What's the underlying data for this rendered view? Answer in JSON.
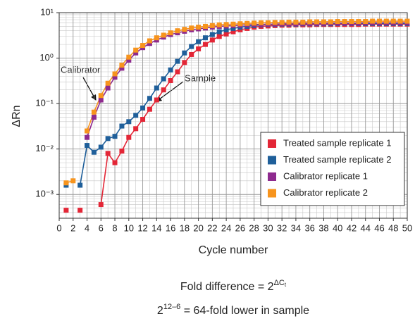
{
  "chart_data": {
    "type": "line",
    "x_label": "Cycle number",
    "y_label": "ΔRn",
    "log_y": true,
    "grid": true,
    "x": [
      1,
      2,
      3,
      4,
      5,
      6,
      7,
      8,
      9,
      10,
      11,
      12,
      13,
      14,
      15,
      16,
      17,
      18,
      19,
      20,
      21,
      22,
      23,
      24,
      25,
      26,
      27,
      28,
      29,
      30,
      31,
      32,
      33,
      34,
      35,
      36,
      37,
      38,
      39,
      40,
      41,
      42,
      43,
      44,
      45,
      46,
      47,
      48,
      49,
      50
    ],
    "xlim": [
      0,
      50
    ],
    "xticks": [
      0,
      2,
      4,
      6,
      8,
      10,
      12,
      14,
      16,
      18,
      20,
      22,
      24,
      26,
      28,
      30,
      32,
      34,
      36,
      38,
      40,
      42,
      44,
      46,
      48,
      50
    ],
    "ylim": [
      0.0003,
      10
    ],
    "yticks": [
      {
        "value": 0.001,
        "label": "10⁻³"
      },
      {
        "value": 0.01,
        "label": "10⁻²"
      },
      {
        "value": 0.1,
        "label": "10⁻¹"
      },
      {
        "value": 1,
        "label": "10⁰"
      },
      {
        "value": 10,
        "label": "10¹"
      }
    ],
    "legend_position": "lower right",
    "series": [
      {
        "name": "Treated sample replicate 1",
        "color": "#e32636",
        "values": [
          0.00045,
          null,
          0.00045,
          null,
          null,
          0.0006,
          0.008,
          0.005,
          0.009,
          0.018,
          0.028,
          0.045,
          0.075,
          0.12,
          0.2,
          0.32,
          0.5,
          0.8,
          1.2,
          1.6,
          2.0,
          2.5,
          3.0,
          3.4,
          3.8,
          4.2,
          4.5,
          4.8,
          5.0,
          5.1,
          5.2,
          5.3,
          5.3,
          5.4,
          5.4,
          5.4,
          5.5,
          5.5,
          5.5,
          5.5,
          5.5,
          5.5,
          5.5,
          5.6,
          5.6,
          5.6,
          5.6,
          5.6,
          5.6,
          5.6
        ]
      },
      {
        "name": "Treated sample replicate 2",
        "color": "#1f5f9a",
        "values": [
          0.0016,
          null,
          0.0016,
          0.012,
          0.0085,
          0.011,
          0.017,
          0.019,
          0.032,
          0.04,
          0.055,
          0.08,
          0.13,
          0.22,
          0.35,
          0.55,
          0.85,
          1.3,
          1.8,
          2.3,
          2.8,
          3.3,
          3.8,
          4.2,
          4.5,
          4.8,
          5.0,
          5.2,
          5.4,
          5.5,
          5.5,
          5.6,
          5.6,
          5.6,
          5.7,
          5.7,
          5.7,
          5.7,
          5.7,
          5.8,
          5.8,
          5.8,
          5.8,
          5.8,
          5.8,
          5.8,
          5.8,
          5.8,
          5.8,
          5.8
        ]
      },
      {
        "name": "Calibrator replicate 1",
        "color": "#8e2a8e",
        "values": [
          null,
          null,
          null,
          0.018,
          0.05,
          0.12,
          0.22,
          0.38,
          0.6,
          0.9,
          1.3,
          1.7,
          2.1,
          2.5,
          2.9,
          3.3,
          3.6,
          3.9,
          4.2,
          4.4,
          4.6,
          4.8,
          5.0,
          5.1,
          5.2,
          5.3,
          5.4,
          5.5,
          5.5,
          5.6,
          5.6,
          5.7,
          5.7,
          5.7,
          5.8,
          5.8,
          5.8,
          5.8,
          5.9,
          5.9,
          5.9,
          5.9,
          5.9,
          6.0,
          6.0,
          6.0,
          6.0,
          6.0,
          6.0,
          6.0
        ]
      },
      {
        "name": "Calibrator replicate 2",
        "color": "#f7941d",
        "values": [
          0.0018,
          0.002,
          null,
          0.025,
          0.065,
          0.15,
          0.28,
          0.45,
          0.7,
          1.05,
          1.5,
          1.9,
          2.4,
          2.8,
          3.2,
          3.6,
          4.0,
          4.3,
          4.6,
          4.8,
          5.0,
          5.2,
          5.4,
          5.5,
          5.6,
          5.7,
          5.8,
          5.9,
          6.0,
          6.0,
          6.1,
          6.1,
          6.2,
          6.2,
          6.2,
          6.3,
          6.3,
          6.3,
          6.3,
          6.4,
          6.4,
          6.4,
          6.4,
          6.4,
          6.5,
          6.5,
          6.5,
          6.5,
          6.5,
          6.5
        ]
      }
    ],
    "annotations": [
      "Calibrator",
      "Sample"
    ],
    "footnotes": [
      {
        "text": "Fold difference = 2",
        "superscript": "ΔC",
        "subscript": "t"
      },
      {
        "text": "2",
        "superscript": "12–6",
        "rest": " = 64-fold lower in sample"
      }
    ]
  }
}
